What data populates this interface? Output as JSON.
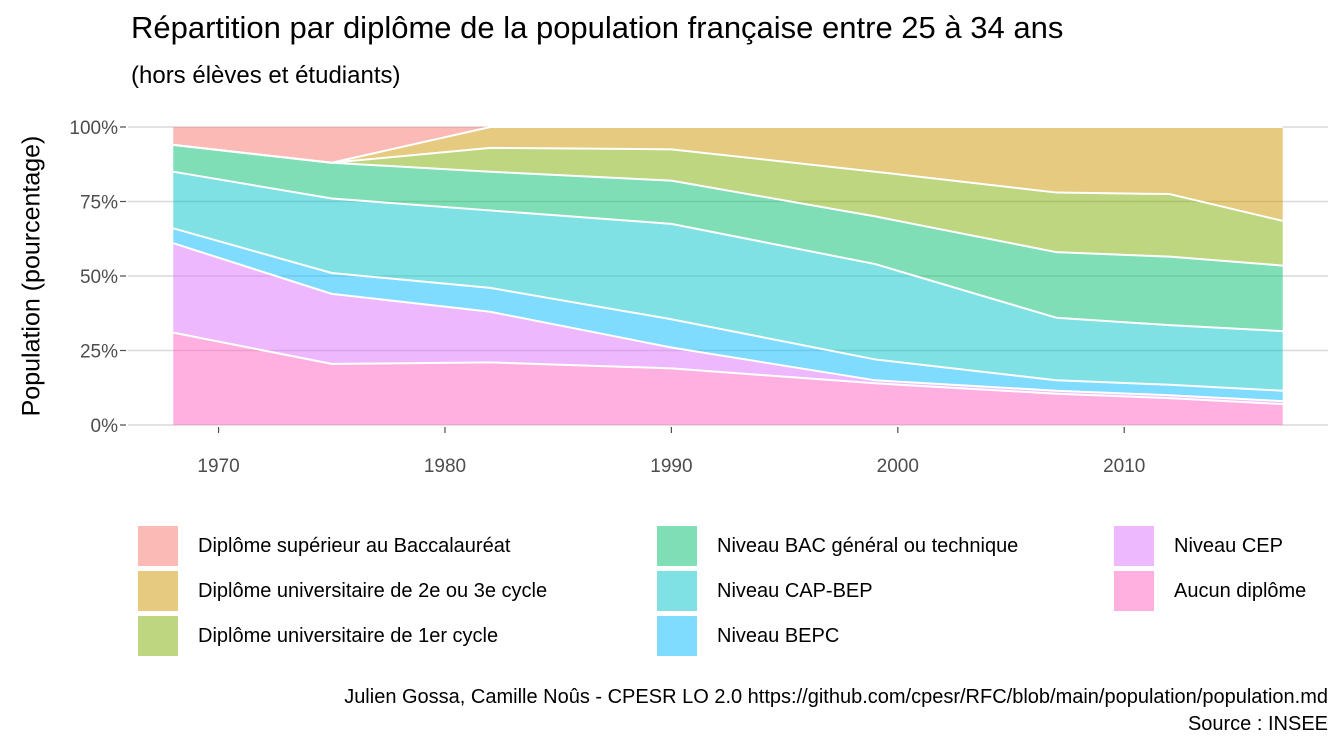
{
  "title": "Répartition par diplôme de la population française entre 25 à 34 ans",
  "subtitle": "(hors élèves et étudiants)",
  "credit": {
    "line1": "Julien Gossa, Camille Noûs - CPESR LO 2.0 https://github.com/cpesr/RFC/blob/main/population/population.md",
    "line2": "Source : INSEE"
  },
  "chart_data": {
    "type": "area",
    "stacked": true,
    "title": "Répartition par diplôme de la population française entre 25 à 34 ans",
    "subtitle": "(hors élèves et étudiants)",
    "xlabel": "",
    "ylabel": "Population (pourcentage)",
    "x": [
      1968,
      1975,
      1982,
      1990,
      1999,
      2007,
      2012,
      2017
    ],
    "xlim": [
      1966,
      2019
    ],
    "ylim": [
      0,
      100
    ],
    "xticks": [
      "1970",
      "1980",
      "1990",
      "2000",
      "2010"
    ],
    "yticks": [
      "0%",
      "25%",
      "50%",
      "75%",
      "100%"
    ],
    "grid": true,
    "legend_position": "bottom",
    "series": [
      {
        "name": "Aucun diplôme",
        "color": "#FF61C3",
        "values": [
          31,
          20.5,
          21,
          19,
          14,
          10.5,
          9,
          7
        ]
      },
      {
        "name": "Niveau CEP",
        "color": "#DB72FB",
        "values": [
          30,
          23.5,
          17,
          7,
          1,
          1,
          1,
          1
        ]
      },
      {
        "name": "Niveau BEPC",
        "color": "#00B9FF",
        "values": [
          5,
          7,
          8,
          9.5,
          7,
          3.5,
          3.5,
          3.5
        ]
      },
      {
        "name": "Niveau CAP-BEP",
        "color": "#00C4C8",
        "values": [
          19,
          25,
          26,
          32,
          32,
          21,
          20,
          20
        ]
      },
      {
        "name": "Niveau BAC général ou technique",
        "color": "#00BE6C",
        "values": [
          9,
          12,
          13,
          14.5,
          16,
          22,
          23,
          22
        ]
      },
      {
        "name": "Diplôme universitaire de 1er cycle",
        "color": "#7CAE00",
        "values": [
          0,
          0,
          8,
          10.5,
          15,
          20,
          21,
          15
        ]
      },
      {
        "name": "Diplôme universitaire de 2e ou 3e cycle",
        "color": "#CD9600",
        "values": [
          0,
          0,
          7,
          7.5,
          15,
          22,
          22.5,
          31.5
        ]
      },
      {
        "name": "Diplôme supérieur au Baccalauréat",
        "color": "#F8766D",
        "values": [
          6,
          12,
          0,
          0,
          0,
          0,
          0,
          0
        ]
      }
    ]
  },
  "legend": [
    {
      "label": "Diplôme supérieur au Baccalauréat",
      "color": "#F8766D"
    },
    {
      "label": "Diplôme universitaire de 2e ou 3e cycle",
      "color": "#CD9600"
    },
    {
      "label": "Diplôme universitaire de 1er cycle",
      "color": "#7CAE00"
    },
    {
      "label": "Niveau BAC général ou technique",
      "color": "#00BE6C"
    },
    {
      "label": "Niveau CAP-BEP",
      "color": "#00C4C8"
    },
    {
      "label": "Niveau BEPC",
      "color": "#00B9FF"
    },
    {
      "label": "Niveau CEP",
      "color": "#DB72FB"
    },
    {
      "label": "Aucun diplôme",
      "color": "#FF61C3"
    }
  ]
}
